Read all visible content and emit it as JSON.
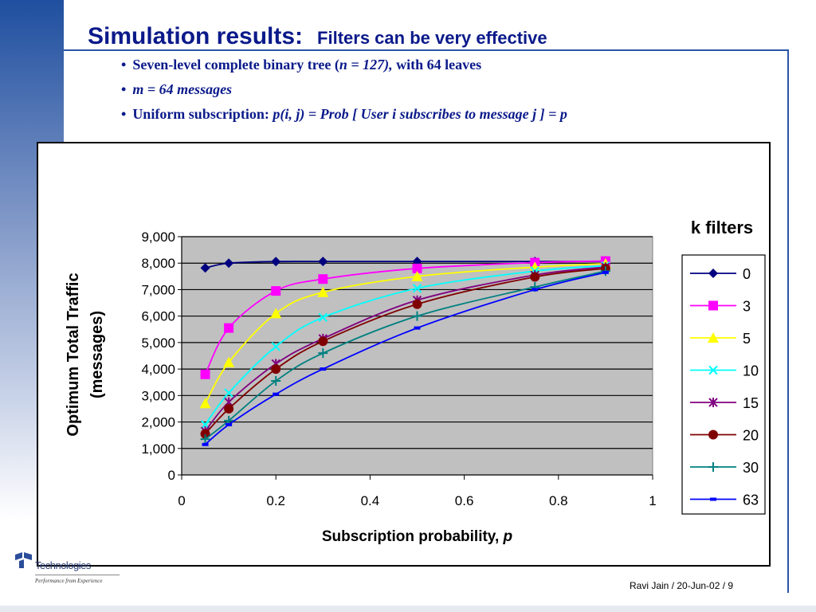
{
  "slide": {
    "title": "Simulation results:",
    "subtitle": "Filters can be very effective",
    "bullets": [
      {
        "parts": [
          {
            "text": "Seven-level complete binary tree (",
            "italic": false
          },
          {
            "text": "n = 127),",
            "italic": true
          },
          {
            "text": " with 64 leaves",
            "italic": false
          }
        ]
      },
      {
        "parts": [
          {
            "text": "m = 64 messages",
            "italic": true
          }
        ]
      },
      {
        "parts": [
          {
            "text": "Uniform subscription:  ",
            "italic": false
          },
          {
            "text": "p(i, j) = Prob [ User i subscribes to message j ] = p",
            "italic": true
          }
        ]
      }
    ],
    "footer": "Ravi Jain / 20-Jun-02 / 9",
    "logo_text": "Technologies",
    "logo_tagline": "Performance from Experience"
  },
  "chart_data": {
    "type": "line",
    "xlabel": "Subscription probability, ",
    "xlabel_var": "p",
    "ylabel_line1": "Optimum Total Traffic",
    "ylabel_line2": "(messages)",
    "legend_title": "k filters",
    "legend_position": "right",
    "xlim": [
      0,
      1
    ],
    "ylim": [
      0,
      9000
    ],
    "x_ticks": [
      "0",
      "0.2",
      "0.4",
      "0.6",
      "0.8",
      "1"
    ],
    "x_tick_values": [
      0,
      0.2,
      0.4,
      0.6,
      0.8,
      1
    ],
    "y_ticks": [
      "0",
      "1,000",
      "2,000",
      "3,000",
      "4,000",
      "5,000",
      "6,000",
      "7,000",
      "8,000",
      "9,000"
    ],
    "y_tick_values": [
      0,
      1000,
      2000,
      3000,
      4000,
      5000,
      6000,
      7000,
      8000,
      9000
    ],
    "grid": "horizontal",
    "plot_background": "#c0c0c0",
    "series": [
      {
        "name": "0",
        "color": "#000080",
        "marker": "diamond",
        "x": [
          0.05,
          0.1,
          0.2,
          0.3,
          0.5,
          0.75,
          0.9
        ],
        "y": [
          7820,
          8000,
          8060,
          8064,
          8064,
          8064,
          8064
        ]
      },
      {
        "name": "3",
        "color": "#ff00ff",
        "marker": "square",
        "x": [
          0.05,
          0.1,
          0.2,
          0.3,
          0.5,
          0.75,
          0.9
        ],
        "y": [
          3800,
          5550,
          6950,
          7400,
          7800,
          8020,
          8080
        ]
      },
      {
        "name": "5",
        "color": "#ffff00",
        "marker": "triangle",
        "x": [
          0.05,
          0.1,
          0.2,
          0.3,
          0.5,
          0.75,
          0.9
        ],
        "y": [
          2700,
          4250,
          6100,
          6900,
          7500,
          7850,
          7980
        ]
      },
      {
        "name": "10",
        "color": "#00ffff",
        "marker": "x",
        "x": [
          0.05,
          0.1,
          0.2,
          0.3,
          0.5,
          0.75,
          0.9
        ],
        "y": [
          1900,
          3100,
          4850,
          5950,
          7050,
          7700,
          7900
        ]
      },
      {
        "name": "15",
        "color": "#800080",
        "marker": "star",
        "x": [
          0.05,
          0.1,
          0.2,
          0.3,
          0.5,
          0.75,
          0.9
        ],
        "y": [
          1650,
          2750,
          4200,
          5150,
          6600,
          7550,
          7850
        ]
      },
      {
        "name": "20",
        "color": "#800000",
        "marker": "circle",
        "x": [
          0.05,
          0.1,
          0.2,
          0.3,
          0.5,
          0.75,
          0.9
        ],
        "y": [
          1550,
          2500,
          4000,
          5050,
          6450,
          7480,
          7800
        ]
      },
      {
        "name": "30",
        "color": "#008080",
        "marker": "plus",
        "x": [
          0.05,
          0.1,
          0.2,
          0.3,
          0.5,
          0.75,
          0.9
        ],
        "y": [
          1350,
          2050,
          3550,
          4600,
          6000,
          7100,
          7700
        ]
      },
      {
        "name": "63",
        "color": "#0000ff",
        "marker": "dash",
        "x": [
          0.05,
          0.1,
          0.2,
          0.3,
          0.5,
          0.75,
          0.9
        ],
        "y": [
          1150,
          1900,
          3050,
          4000,
          5550,
          7000,
          7650
        ]
      }
    ]
  }
}
